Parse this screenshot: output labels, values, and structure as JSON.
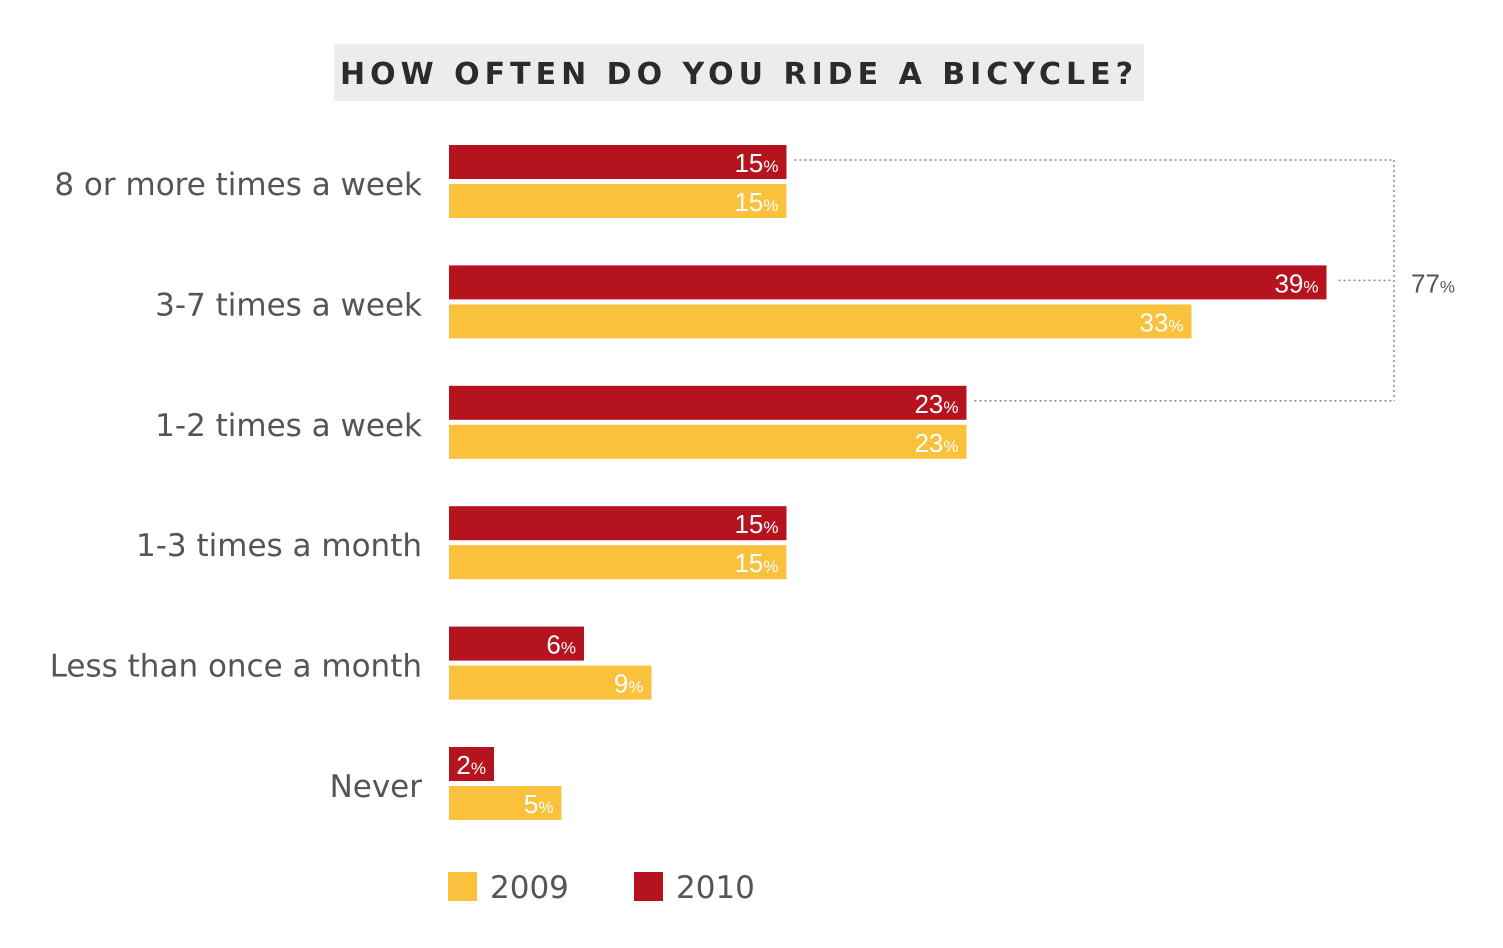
{
  "chart_data": {
    "type": "bar",
    "orientation": "horizontal",
    "title": "HOW OFTEN DO YOU RIDE A BICYCLE?",
    "categories": [
      "8 or more times a week",
      "3-7 times a week",
      "1-2 times a week",
      "1-3 times a month",
      "Less than once a month",
      "Never"
    ],
    "series": [
      {
        "name": "2010",
        "color": "#b5141f",
        "values": [
          15,
          39,
          23,
          15,
          6,
          2
        ]
      },
      {
        "name": "2009",
        "color": "#f9c13c",
        "values": [
          15,
          33,
          23,
          15,
          9,
          5
        ]
      }
    ],
    "unit": "%",
    "xlim": [
      0,
      39
    ],
    "grid": false,
    "legend": {
      "placement": "bottom-left",
      "entries": [
        "2009",
        "2010"
      ]
    },
    "annotation": {
      "label": "77",
      "unit": "%",
      "series": "2010",
      "categories": [
        "8 or more times a week",
        "3-7 times a week",
        "1-2 times a week"
      ]
    }
  }
}
